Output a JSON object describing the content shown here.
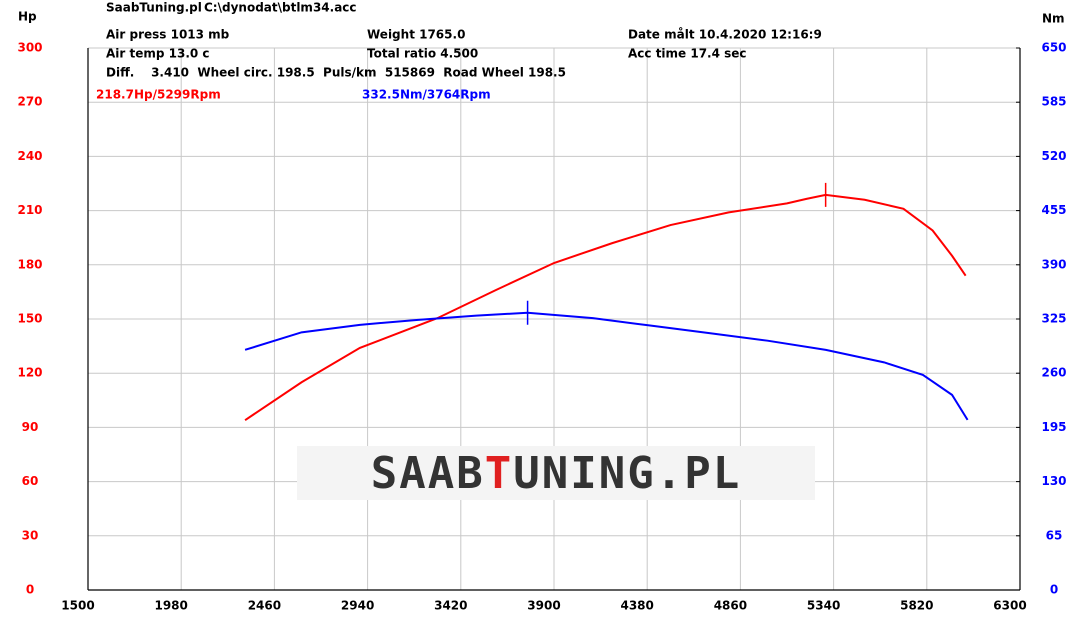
{
  "chart_data": {
    "type": "line",
    "header": {
      "site": "SaabTuning.pl",
      "file": "C:\\dynodat\\btlm34.acc",
      "air_press": "Air press  1013 mb",
      "air_temp": "Air temp  13.0 c",
      "diff": "Diff.    3.410  Wheel circ. 198.5  Puls/km  515869  Road Wheel 198.5",
      "weight": "Weight   1765.0",
      "total_ratio": "Total ratio 4.500",
      "date": "Date målt 10.4.2020 12:16:9",
      "acc_time": "Acc time  17.4 sec"
    },
    "y_label": "Hp",
    "y2_label": "Nm",
    "annotations": [
      {
        "text": "218.7Hp/5299Rpm",
        "color": "#ff0000"
      },
      {
        "text": "332.5Nm/3764Rpm",
        "color": "#0000ff"
      }
    ],
    "watermark": [
      "SAAB",
      "T",
      "UNING.PL"
    ],
    "xlim": [
      1500,
      6300
    ],
    "xticks": [
      1500,
      1980,
      2460,
      2940,
      3420,
      3900,
      4380,
      4860,
      5340,
      5820,
      6300
    ],
    "ylim": [
      0,
      300
    ],
    "yticks": [
      0,
      30,
      60,
      90,
      120,
      150,
      180,
      210,
      240,
      270,
      300
    ],
    "y2lim": [
      0,
      650
    ],
    "y2ticks": [
      0,
      65,
      130,
      195,
      260,
      325,
      390,
      455,
      520,
      585,
      650
    ],
    "grid": true,
    "series": [
      {
        "name": "Hp",
        "color": "#ff0000",
        "peak_index": 11,
        "x": [
          2309,
          2600,
          2900,
          3300,
          3600,
          3900,
          4200,
          4500,
          4800,
          5100,
          5200,
          5299,
          5500,
          5700,
          5850,
          5950,
          6020
        ],
        "values": [
          94,
          115,
          134,
          150.5,
          166,
          181,
          192,
          202,
          209,
          214,
          216.5,
          218.7,
          216,
          211,
          199,
          185,
          174
        ]
      },
      {
        "name": "Nm",
        "color": "#0000ff",
        "axis": "y2",
        "peak_index": 5,
        "x": [
          2309,
          2600,
          2900,
          3200,
          3500,
          3764,
          4100,
          4400,
          4700,
          5000,
          5300,
          5600,
          5800,
          5950,
          6030
        ],
        "values": [
          288,
          309,
          318,
          324,
          329,
          332.5,
          326,
          317,
          308,
          299,
          288,
          273,
          258,
          234,
          204
        ]
      }
    ]
  }
}
